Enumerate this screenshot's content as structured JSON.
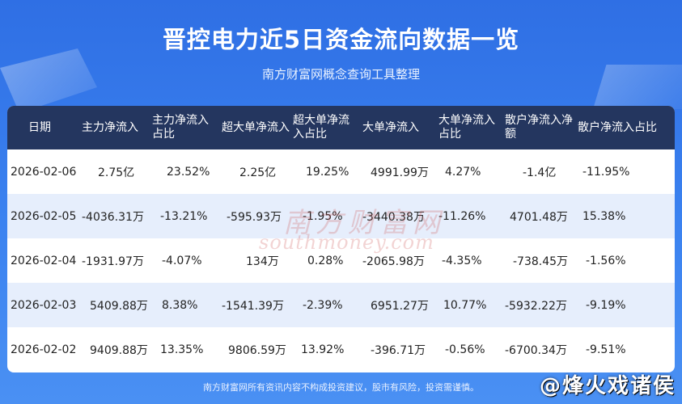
{
  "header": {
    "title": "晋控电力近5日资金流向数据一览",
    "subtitle": "南方财富网概念查询工具整理"
  },
  "table": {
    "columns": [
      "日期",
      "主力净流入",
      "主力净流入占比",
      "超大单净流入",
      "超大单净流入占比",
      "大单净流入",
      "大单净流入占比",
      "散户净流入净额",
      "散户净流入占比"
    ],
    "rows": [
      [
        "2026-02-06",
        "2.75亿",
        "23.52%",
        "2.25亿",
        "19.25%",
        "4991.99万",
        "4.27%",
        "-1.4亿",
        "-11.95%"
      ],
      [
        "2026-02-05",
        "-4036.31万",
        "-13.21%",
        "-595.93万",
        "-1.95%",
        "-3440.38万",
        "-11.26%",
        "4701.48万",
        "15.38%"
      ],
      [
        "2026-02-04",
        "-1931.97万",
        "-4.07%",
        "134万",
        "0.28%",
        "-2065.98万",
        "-4.35%",
        "-738.45万",
        "-1.56%"
      ],
      [
        "2026-02-03",
        "5409.88万",
        "8.38%",
        "-1541.39万",
        "-2.39%",
        "6951.27万",
        "10.77%",
        "-5932.22万",
        "-9.19%"
      ],
      [
        "2026-02-02",
        "9409.88万",
        "13.35%",
        "9806.59万",
        "13.92%",
        "-396.71万",
        "-0.56%",
        "-6700.34万",
        "-9.51%"
      ]
    ]
  },
  "watermark": {
    "text": "南方财富网",
    "url": "southmoney.com"
  },
  "footer": {
    "disclaimer": "南方财富网所有资讯内容不构成投资建议，股市有风险，投资需谨慎。",
    "handle": "@烽火戏诸侯"
  },
  "colors": {
    "background": "#3b82f0",
    "header_row": "#24365f",
    "alt_row": "#e6eefc"
  }
}
